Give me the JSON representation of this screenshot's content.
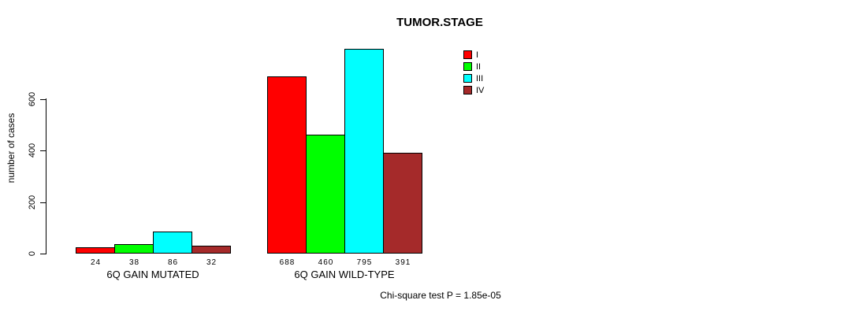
{
  "chart_data": {
    "type": "bar",
    "title": "TUMOR.STAGE",
    "ylabel": "number of cases",
    "yticks": [
      0,
      200,
      400,
      600
    ],
    "ylim": [
      0,
      800
    ],
    "grid": false,
    "legend_position": "top-right",
    "categories": [
      "6Q GAIN MUTATED",
      "6Q GAIN WILD-TYPE"
    ],
    "series": [
      {
        "name": "I",
        "color": "#FF0000",
        "values": [
          24,
          688
        ]
      },
      {
        "name": "II",
        "color": "#00FF00",
        "values": [
          38,
          460
        ]
      },
      {
        "name": "III",
        "color": "#00FFFF",
        "values": [
          86,
          795
        ]
      },
      {
        "name": "IV",
        "color": "#A52A2A",
        "values": [
          32,
          391
        ]
      }
    ],
    "groups": [
      {
        "label": "6Q GAIN MUTATED",
        "values": [
          24,
          38,
          86,
          32
        ]
      },
      {
        "label": "6Q GAIN WILD-TYPE",
        "values": [
          688,
          460,
          795,
          391
        ]
      }
    ],
    "annotation": "Chi-square test P = 1.85e-05"
  }
}
